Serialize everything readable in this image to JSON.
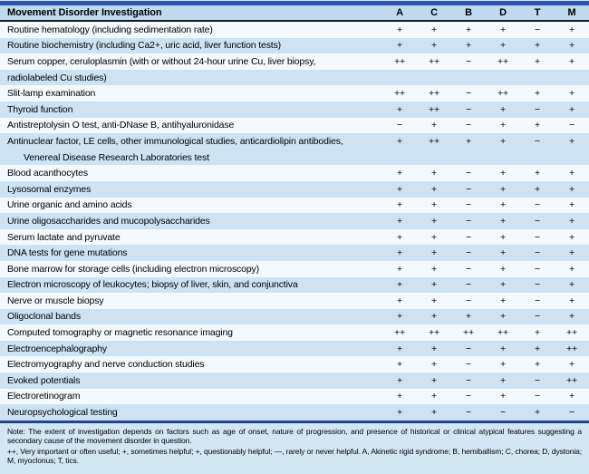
{
  "colors": {
    "accent_bar": "#2a57ab",
    "header_bg": "#bfdaf0",
    "row_white": "#f4f9fd",
    "row_blue": "#cde3f4",
    "rule_black": "#1a1a1a",
    "rule_navy": "#20458c",
    "note_bg": "#d3e6f4",
    "text": "#000000"
  },
  "table": {
    "title": "Movement Disorder Investigation",
    "columns": [
      "A",
      "C",
      "B",
      "D",
      "T",
      "M"
    ],
    "rows": [
      {
        "label": "Routine hematology (including sedimentation rate)",
        "shade": "white",
        "indent": false,
        "values": [
          "+",
          "+",
          "+",
          "+",
          "−",
          "+"
        ]
      },
      {
        "label": "Routine biochemistry (including Ca2+, uric acid, liver function tests)",
        "shade": "blue",
        "indent": false,
        "values": [
          "+",
          "+",
          "+",
          "+",
          "+",
          "+"
        ]
      },
      {
        "label": "Serum copper, ceruloplasmin (with or without 24-hour urine Cu, liver biopsy,",
        "shade": "white",
        "indent": false,
        "values": [
          "++",
          "++",
          "−",
          "++",
          "+",
          "+"
        ]
      },
      {
        "label": "radiolabeled Cu studies)",
        "shade": "blue",
        "indent": false,
        "values": [
          "",
          "",
          "",
          "",
          "",
          ""
        ]
      },
      {
        "label": "Slit-lamp examination",
        "shade": "white",
        "indent": false,
        "values": [
          "++",
          "++",
          "−",
          "++",
          "+",
          "+"
        ]
      },
      {
        "label": "Thyroid function",
        "shade": "blue",
        "indent": false,
        "values": [
          "+",
          "++",
          "−",
          "+",
          "−",
          "+"
        ]
      },
      {
        "label": "Antistreptolysin O test, anti-DNase B, antihyaluronidase",
        "shade": "white",
        "indent": false,
        "values": [
          "−",
          "+",
          "−",
          "+",
          "+",
          "−"
        ]
      },
      {
        "label": "Antinuclear factor, LE cells, other immunological studies, anticardiolipin antibodies,",
        "shade": "blue",
        "indent": false,
        "values": [
          "+",
          "++",
          "+",
          "+",
          "−",
          "+"
        ]
      },
      {
        "label": "Venereal Disease Research Laboratories test",
        "shade": "blue",
        "indent": true,
        "values": [
          "",
          "",
          "",
          "",
          "",
          ""
        ]
      },
      {
        "label": "Blood acanthocytes",
        "shade": "white",
        "indent": false,
        "values": [
          "+",
          "+",
          "−",
          "+",
          "+",
          "+"
        ]
      },
      {
        "label": "Lysosomal enzymes",
        "shade": "blue",
        "indent": false,
        "values": [
          "+",
          "+",
          "−",
          "+",
          "+",
          "+"
        ]
      },
      {
        "label": "Urine organic and amino acids",
        "shade": "white",
        "indent": false,
        "values": [
          "+",
          "+",
          "−",
          "+",
          "−",
          "+"
        ]
      },
      {
        "label": "Urine oligosaccharides and mucopolysaccharides",
        "shade": "blue",
        "indent": false,
        "values": [
          "+",
          "+",
          "−",
          "+",
          "−",
          "+"
        ]
      },
      {
        "label": "Serum lactate and pyruvate",
        "shade": "white",
        "indent": false,
        "values": [
          "+",
          "+",
          "−",
          "+",
          "−",
          "+"
        ]
      },
      {
        "label": "DNA tests for gene mutations",
        "shade": "blue",
        "indent": false,
        "values": [
          "+",
          "+",
          "−",
          "+",
          "−",
          "+"
        ]
      },
      {
        "label": "Bone marrow for storage cells (including electron microscopy)",
        "shade": "white",
        "indent": false,
        "values": [
          "+",
          "+",
          "−",
          "+",
          "−",
          "+"
        ]
      },
      {
        "label": "Electron microscopy of leukocytes; biopsy of liver, skin, and conjunctiva",
        "shade": "blue",
        "indent": false,
        "values": [
          "+",
          "+",
          "−",
          "+",
          "−",
          "+"
        ]
      },
      {
        "label": "Nerve or muscle biopsy",
        "shade": "white",
        "indent": false,
        "values": [
          "+",
          "+",
          "−",
          "+",
          "−",
          "+"
        ]
      },
      {
        "label": "Oligoclonal bands",
        "shade": "blue",
        "indent": false,
        "values": [
          "+",
          "+",
          "+",
          "+",
          "−",
          "+"
        ]
      },
      {
        "label": "Computed tomography or magnetic resonance imaging",
        "shade": "white",
        "indent": false,
        "values": [
          "++",
          "++",
          "++",
          "++",
          "+",
          "++"
        ]
      },
      {
        "label": "Electroencephalography",
        "shade": "blue",
        "indent": false,
        "values": [
          "+",
          "+",
          "−",
          "+",
          "+",
          "++"
        ]
      },
      {
        "label": "Electromyography and nerve conduction studies",
        "shade": "white",
        "indent": false,
        "values": [
          "+",
          "+",
          "−",
          "+",
          "+",
          "+"
        ]
      },
      {
        "label": "Evoked potentials",
        "shade": "blue",
        "indent": false,
        "values": [
          "+",
          "+",
          "−",
          "+",
          "−",
          "++"
        ]
      },
      {
        "label": "Electroretinogram",
        "shade": "white",
        "indent": false,
        "values": [
          "+",
          "+",
          "−",
          "+",
          "−",
          "+"
        ]
      },
      {
        "label": "Neuropsychological testing",
        "shade": "blue",
        "indent": false,
        "values": [
          "+",
          "+",
          "−",
          "−",
          "+",
          "−"
        ]
      }
    ]
  },
  "notes": {
    "line1": "Note: The extent of investigation depends on factors such as age of onset, nature of progression, and presence of historical or clinical atypical features suggesting a secondary cause of the movement disorder in question.",
    "line2": "++, Very important or often useful; +, sometimes helpful; +, questionably helpful; —, rarely or never helpful. A, Akinetic rigid syndrome; B, hemiballism; C, chorea; D, dystonia; M, myoclonus; T, tics."
  }
}
